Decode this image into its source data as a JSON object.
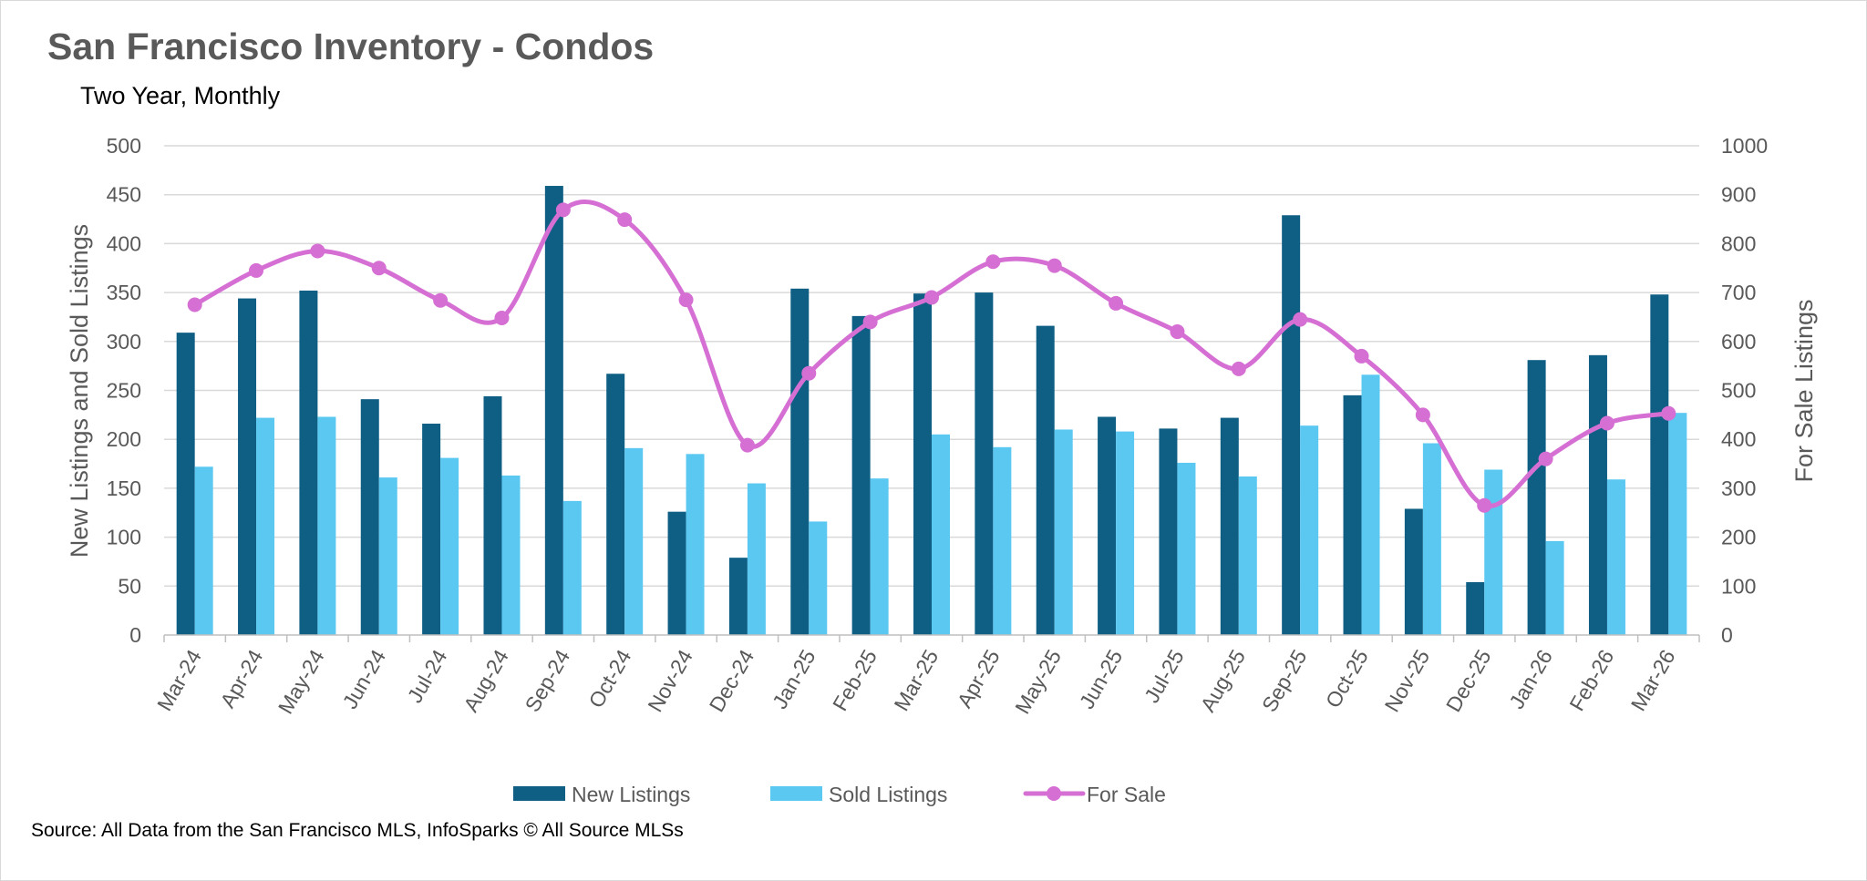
{
  "header": {
    "title": "San Francisco Inventory - Condos",
    "subtitle": "Two Year, Monthly"
  },
  "footer": {
    "source": "Source: All Data from the San Francisco MLS, InfoSparks © All Source MLSs"
  },
  "colors": {
    "new_listings": "#0f5f85",
    "sold_listings": "#5bc8f2",
    "for_sale": "#d56fd3",
    "grid": "#d9d9d9"
  },
  "chart_data": {
    "type": "bar",
    "title": "San Francisco Inventory - Condos",
    "subtitle": "Two Year, Monthly",
    "categories": [
      "Mar-24",
      "Apr-24",
      "May-24",
      "Jun-24",
      "Jul-24",
      "Aug-24",
      "Sep-24",
      "Oct-24",
      "Nov-24",
      "Dec-24",
      "Jan-25",
      "Feb-25",
      "Mar-25",
      "Apr-25",
      "May-25",
      "Jun-25",
      "Jul-25",
      "Aug-25",
      "Sep-25",
      "Oct-25",
      "Nov-25",
      "Dec-25",
      "Jan-26",
      "Feb-26",
      "Mar-26"
    ],
    "series": [
      {
        "name": "New Listings",
        "type": "bar",
        "axis": "left",
        "values": [
          309,
          344,
          352,
          241,
          216,
          244,
          459,
          267,
          126,
          79,
          354,
          326,
          349,
          350,
          316,
          223,
          211,
          222,
          429,
          245,
          129,
          54,
          281,
          286,
          348
        ]
      },
      {
        "name": "Sold Listings",
        "type": "bar",
        "axis": "left",
        "values": [
          172,
          222,
          223,
          161,
          181,
          163,
          137,
          191,
          185,
          155,
          116,
          160,
          205,
          192,
          210,
          208,
          176,
          162,
          214,
          266,
          196,
          169,
          96,
          159,
          227
        ]
      },
      {
        "name": "For Sale",
        "type": "line",
        "axis": "right",
        "smooth": true,
        "values": [
          675,
          745,
          785,
          750,
          684,
          648,
          869,
          849,
          685,
          388,
          535,
          640,
          690,
          763,
          755,
          678,
          620,
          544,
          645,
          570,
          450,
          265,
          360,
          433,
          453
        ]
      }
    ],
    "ylabel": "New Listings and Sold Listings",
    "y2label": "For Sale Listings",
    "ylim": [
      0,
      500
    ],
    "y2lim": [
      0,
      1000
    ],
    "yticks": [
      "0",
      "50",
      "100",
      "150",
      "200",
      "250",
      "300",
      "350",
      "400",
      "450",
      "500"
    ],
    "y2ticks": [
      "0",
      "100",
      "200",
      "300",
      "400",
      "500",
      "600",
      "700",
      "800",
      "900",
      "1000"
    ],
    "grid": true,
    "legend_position": "bottom"
  }
}
